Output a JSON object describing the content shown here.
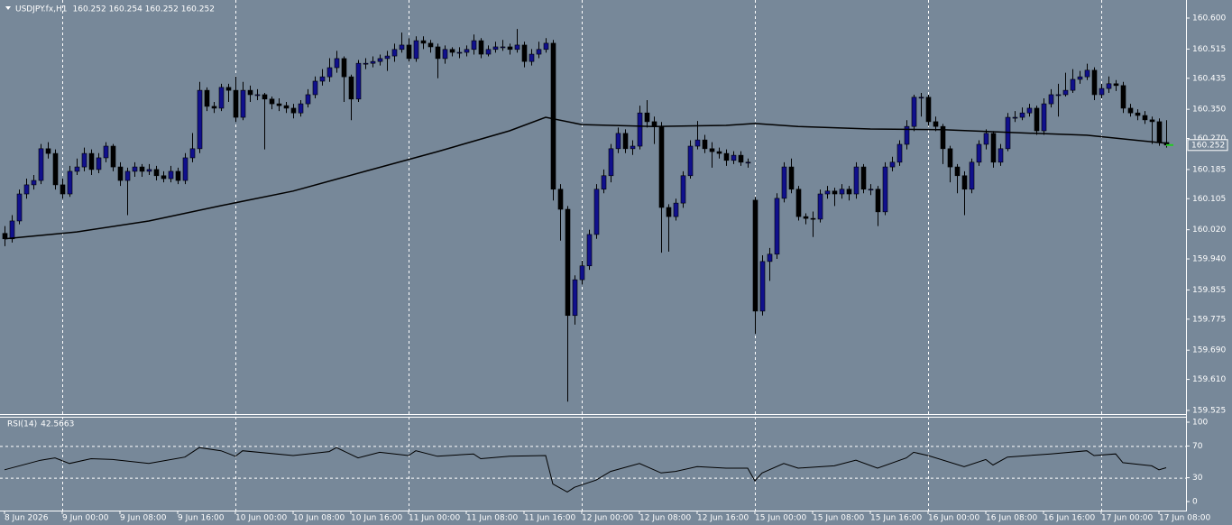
{
  "chart_data": [
    {
      "type": "candlestick",
      "title": "USDJPY.fx,H1",
      "quote": "160.252 160.254 160.252 160.252",
      "up_color": "#10108c",
      "down_color": "#000000",
      "wick_color": "#000000",
      "xlim": [
        -0.625,
        163.75
      ],
      "ylim": [
        159.515,
        160.642
      ],
      "yticks": [
        {
          "value": 160.6,
          "label": "160.600"
        },
        160.515,
        160.435,
        {
          "value": 160.35,
          "label": "160.350"
        },
        {
          "value": 160.27,
          "label": "160.270"
        },
        160.185,
        160.105,
        {
          "value": 160.02,
          "label": "160.020"
        },
        {
          "value": 159.94,
          "label": "159.940"
        },
        159.855,
        159.775,
        {
          "value": 159.69,
          "label": "159.690"
        },
        {
          "value": 159.61,
          "label": "159.610"
        },
        159.525
      ],
      "current_price": 160.252,
      "xticks": [
        {
          "value": 0,
          "label": "8 Jun 2026"
        },
        {
          "value": 8,
          "label": "9 Jun 00:00"
        },
        {
          "value": 16,
          "label": "9 Jun 08:00"
        },
        {
          "value": 24,
          "label": "9 Jun 16:00"
        },
        {
          "value": 32,
          "label": "10 Jun 00:00"
        },
        {
          "value": 40,
          "label": "10 Jun 08:00"
        },
        {
          "value": 48,
          "label": "10 Jun 16:00"
        },
        {
          "value": 56,
          "label": "11 Jun 00:00"
        },
        {
          "value": 64,
          "label": "11 Jun 08:00"
        },
        {
          "value": 72,
          "label": "11 Jun 16:00"
        },
        {
          "value": 80,
          "label": "12 Jun 00:00"
        },
        {
          "value": 88,
          "label": "12 Jun 08:00"
        },
        {
          "value": 96,
          "label": "12 Jun 16:00"
        },
        {
          "value": 104,
          "label": "15 Jun 00:00"
        },
        {
          "value": 112,
          "label": "15 Jun 08:00"
        },
        {
          "value": 120,
          "label": "15 Jun 16:00"
        },
        {
          "value": 128,
          "label": "16 Jun 00:00"
        },
        {
          "value": 136,
          "label": "16 Jun 08:00"
        },
        {
          "value": 144,
          "label": "16 Jun 16:00"
        },
        {
          "value": 152,
          "label": "17 Jun 00:00"
        },
        {
          "value": 160,
          "label": "17 Jun 08:00"
        }
      ],
      "open": [
        160.01,
        159.995,
        160.044,
        160.118,
        160.143,
        160.155,
        160.242,
        160.229,
        160.143,
        160.118,
        160.18,
        160.192,
        160.229,
        160.185,
        160.217,
        160.249,
        160.192,
        160.155,
        160.18,
        160.192,
        160.18,
        160.185,
        160.168,
        160.16,
        160.18,
        160.155,
        160.217,
        160.242,
        160.402,
        160.358,
        160.353,
        160.41,
        160.402,
        160.328,
        160.402,
        160.39,
        160.39,
        160.378,
        160.365,
        160.36,
        160.353,
        160.34,
        160.365,
        160.39,
        160.427,
        160.439,
        160.464,
        160.489,
        160.439,
        160.378,
        160.476,
        160.476,
        160.481,
        160.489,
        160.496,
        160.514,
        160.526,
        160.489,
        160.538,
        160.531,
        160.521,
        160.489,
        160.514,
        160.506,
        160.506,
        160.514,
        160.538,
        160.501,
        160.514,
        160.521,
        160.521,
        160.514,
        160.526,
        160.481,
        160.501,
        160.514,
        160.531,
        160.131,
        160.076,
        159.785,
        159.883,
        159.921,
        160.007,
        160.131,
        160.168,
        160.242,
        160.284,
        160.242,
        160.249,
        160.34,
        160.316,
        160.303,
        160.081,
        160.056,
        160.093,
        160.168,
        160.249,
        160.266,
        160.242,
        160.234,
        160.229,
        160.21,
        160.224,
        160.205,
        160.101,
        159.797,
        159.933,
        159.953,
        160.106,
        160.192,
        160.131,
        160.056,
        160.051,
        160.049,
        160.118,
        160.126,
        160.118,
        160.131,
        160.118,
        160.192,
        160.131,
        160.131,
        160.069,
        160.192,
        160.205,
        160.254,
        160.303,
        160.383,
        160.383,
        160.316,
        160.303,
        160.242,
        160.192,
        160.168,
        160.131,
        160.205,
        160.254,
        160.284,
        160.205,
        160.242,
        160.328,
        160.328,
        160.34,
        160.353,
        160.291,
        160.365,
        160.39,
        160.39,
        160.402,
        160.432,
        160.439,
        160.457,
        160.39,
        160.407,
        160.42,
        160.415,
        160.353,
        160.34,
        160.333,
        160.321,
        160.316,
        160.259
      ],
      "high": [
        160.03,
        160.06,
        160.13,
        160.16,
        160.17,
        160.255,
        160.26,
        160.24,
        160.16,
        160.195,
        160.215,
        160.245,
        160.24,
        160.23,
        160.26,
        160.255,
        160.205,
        160.19,
        160.205,
        160.2,
        160.2,
        160.195,
        160.18,
        160.195,
        160.19,
        160.23,
        160.285,
        160.425,
        160.41,
        160.37,
        160.42,
        160.42,
        160.44,
        160.425,
        160.415,
        160.405,
        160.395,
        160.385,
        160.38,
        160.37,
        160.365,
        160.375,
        160.405,
        160.44,
        160.46,
        160.49,
        160.51,
        160.495,
        160.445,
        160.485,
        160.49,
        160.495,
        160.5,
        160.51,
        160.53,
        160.56,
        160.545,
        160.55,
        160.55,
        160.54,
        160.53,
        160.525,
        160.52,
        160.52,
        160.525,
        160.555,
        160.545,
        160.525,
        160.535,
        160.54,
        160.53,
        160.57,
        160.535,
        160.515,
        160.535,
        160.545,
        160.54,
        160.145,
        160.085,
        159.895,
        159.935,
        160.02,
        160.145,
        160.185,
        160.255,
        160.3,
        160.295,
        160.265,
        160.36,
        160.375,
        160.33,
        160.315,
        160.09,
        160.105,
        160.18,
        160.265,
        160.318,
        160.28,
        160.26,
        160.245,
        160.24,
        160.235,
        160.235,
        160.215,
        160.11,
        159.95,
        159.97,
        160.12,
        160.205,
        160.215,
        160.14,
        160.065,
        160.07,
        160.13,
        160.14,
        160.135,
        160.145,
        160.14,
        160.205,
        160.2,
        160.145,
        160.14,
        160.205,
        160.22,
        160.265,
        160.32,
        160.39,
        160.395,
        160.39,
        160.33,
        160.31,
        160.25,
        160.2,
        160.18,
        160.215,
        160.265,
        160.295,
        160.29,
        160.255,
        160.34,
        160.345,
        160.355,
        160.365,
        160.36,
        160.38,
        160.405,
        160.42,
        160.45,
        160.46,
        160.455,
        160.475,
        160.465,
        160.42,
        160.44,
        160.43,
        160.425,
        160.365,
        160.35,
        160.345,
        160.33,
        160.325,
        160.32
      ],
      "low": [
        159.975,
        159.985,
        160.035,
        160.105,
        160.13,
        160.145,
        160.215,
        160.13,
        160.105,
        160.11,
        160.17,
        160.18,
        160.17,
        160.175,
        160.205,
        160.18,
        160.14,
        160.06,
        160.165,
        160.165,
        160.17,
        160.155,
        160.15,
        160.15,
        160.145,
        160.145,
        160.205,
        160.23,
        160.345,
        160.34,
        160.345,
        160.37,
        160.315,
        160.32,
        160.37,
        160.375,
        160.24,
        160.35,
        160.345,
        160.34,
        160.325,
        160.33,
        160.355,
        160.38,
        160.415,
        160.425,
        160.45,
        160.37,
        160.32,
        160.37,
        160.46,
        160.465,
        160.47,
        160.455,
        160.48,
        160.505,
        160.48,
        160.48,
        160.515,
        160.505,
        160.435,
        160.475,
        160.495,
        160.49,
        160.495,
        160.5,
        160.49,
        160.495,
        160.505,
        160.51,
        160.5,
        160.505,
        160.465,
        160.47,
        160.49,
        160.505,
        160.1,
        159.99,
        159.549,
        159.76,
        159.87,
        159.91,
        159.995,
        160.12,
        160.15,
        160.23,
        160.23,
        160.225,
        160.24,
        160.3,
        160.255,
        159.957,
        159.96,
        160.045,
        160.08,
        160.16,
        160.24,
        160.23,
        160.19,
        160.215,
        160.195,
        160.2,
        160.195,
        160.19,
        159.735,
        159.785,
        159.88,
        159.94,
        160.095,
        160.12,
        160.045,
        160.035,
        160.0,
        160.04,
        160.105,
        160.085,
        160.105,
        160.1,
        160.105,
        160.12,
        160.115,
        160.03,
        160.06,
        160.18,
        160.195,
        160.24,
        160.29,
        160.33,
        160.305,
        160.29,
        160.2,
        160.15,
        160.12,
        160.06,
        160.12,
        160.195,
        160.24,
        160.19,
        160.195,
        160.235,
        160.315,
        160.32,
        160.33,
        160.28,
        160.28,
        160.355,
        160.33,
        160.385,
        160.395,
        160.42,
        160.43,
        160.375,
        160.38,
        160.395,
        160.4,
        160.34,
        160.33,
        160.32,
        160.31,
        160.255,
        160.25,
        160.245
      ],
      "close": [
        159.995,
        160.044,
        160.118,
        160.143,
        160.155,
        160.242,
        160.229,
        160.143,
        160.118,
        160.18,
        160.192,
        160.229,
        160.185,
        160.217,
        160.249,
        160.192,
        160.155,
        160.18,
        160.192,
        160.18,
        160.185,
        160.168,
        160.16,
        160.18,
        160.155,
        160.217,
        160.242,
        160.402,
        160.358,
        160.353,
        160.41,
        160.402,
        160.328,
        160.402,
        160.39,
        160.39,
        160.378,
        160.365,
        160.36,
        160.353,
        160.34,
        160.365,
        160.39,
        160.427,
        160.439,
        160.464,
        160.489,
        160.439,
        160.378,
        160.476,
        160.476,
        160.481,
        160.489,
        160.496,
        160.514,
        160.526,
        160.489,
        160.538,
        160.531,
        160.521,
        160.489,
        160.514,
        160.506,
        160.506,
        160.514,
        160.538,
        160.501,
        160.514,
        160.521,
        160.521,
        160.514,
        160.526,
        160.481,
        160.501,
        160.514,
        160.531,
        160.131,
        160.076,
        159.785,
        159.883,
        159.921,
        160.007,
        160.131,
        160.168,
        160.242,
        160.284,
        160.242,
        160.249,
        160.34,
        160.316,
        160.303,
        160.081,
        160.056,
        160.093,
        160.168,
        160.249,
        160.266,
        160.242,
        160.234,
        160.229,
        160.21,
        160.224,
        160.205,
        160.205,
        159.797,
        159.933,
        159.953,
        160.106,
        160.192,
        160.131,
        160.056,
        160.051,
        160.049,
        160.118,
        160.126,
        160.118,
        160.131,
        160.118,
        160.192,
        160.131,
        160.131,
        160.069,
        160.192,
        160.205,
        160.254,
        160.303,
        160.383,
        160.383,
        160.316,
        160.303,
        160.242,
        160.192,
        160.168,
        160.131,
        160.205,
        160.254,
        160.284,
        160.205,
        160.242,
        160.328,
        160.328,
        160.34,
        160.353,
        160.291,
        160.365,
        160.39,
        160.39,
        160.402,
        160.432,
        160.439,
        160.457,
        160.39,
        160.407,
        160.42,
        160.415,
        160.353,
        160.34,
        160.333,
        160.321,
        160.316,
        160.259,
        160.252
      ],
      "ma": {
        "color": "#000000",
        "x": [
          0,
          10,
          20,
          30,
          40,
          50,
          60,
          70,
          75,
          80,
          90,
          100,
          104,
          110,
          120,
          130,
          140,
          150,
          160,
          161
        ],
        "values": [
          159.995,
          160.014,
          160.044,
          160.086,
          160.126,
          160.18,
          160.234,
          160.291,
          160.328,
          160.308,
          160.303,
          160.306,
          160.311,
          160.303,
          160.296,
          160.294,
          160.286,
          160.279,
          160.259,
          160.257
        ]
      }
    },
    {
      "type": "line",
      "title": "RSI(14)",
      "color": "#000000",
      "xlim": [
        -0.625,
        163.75
      ],
      "ylim": [
        0,
        100
      ],
      "yticks": [
        100,
        70,
        30,
        0
      ],
      "x": [
        0,
        5,
        7,
        9,
        12,
        15,
        20,
        25,
        27,
        30,
        32,
        33,
        40,
        45,
        46,
        49,
        52,
        56,
        57,
        60,
        65,
        66,
        70,
        75,
        76,
        78,
        79,
        82,
        84,
        88,
        91,
        93,
        96,
        100,
        103,
        104,
        105,
        108,
        110,
        115,
        118,
        121,
        125,
        126,
        128,
        133,
        136,
        137,
        139,
        145,
        150,
        151,
        154,
        155,
        159,
        160,
        161
      ],
      "values": [
        40,
        52,
        55,
        48,
        54,
        53,
        48,
        56,
        68,
        64,
        57,
        64,
        58,
        63,
        68,
        55,
        62,
        58,
        64,
        57,
        60,
        54,
        57,
        58,
        22,
        12,
        18,
        27,
        38,
        48,
        36,
        38,
        44,
        42,
        42,
        26,
        36,
        48,
        42,
        45,
        52,
        42,
        55,
        62,
        58,
        44,
        53,
        46,
        56,
        60,
        64,
        58,
        60,
        49,
        45,
        40,
        42.5663
      ]
    }
  ]
}
